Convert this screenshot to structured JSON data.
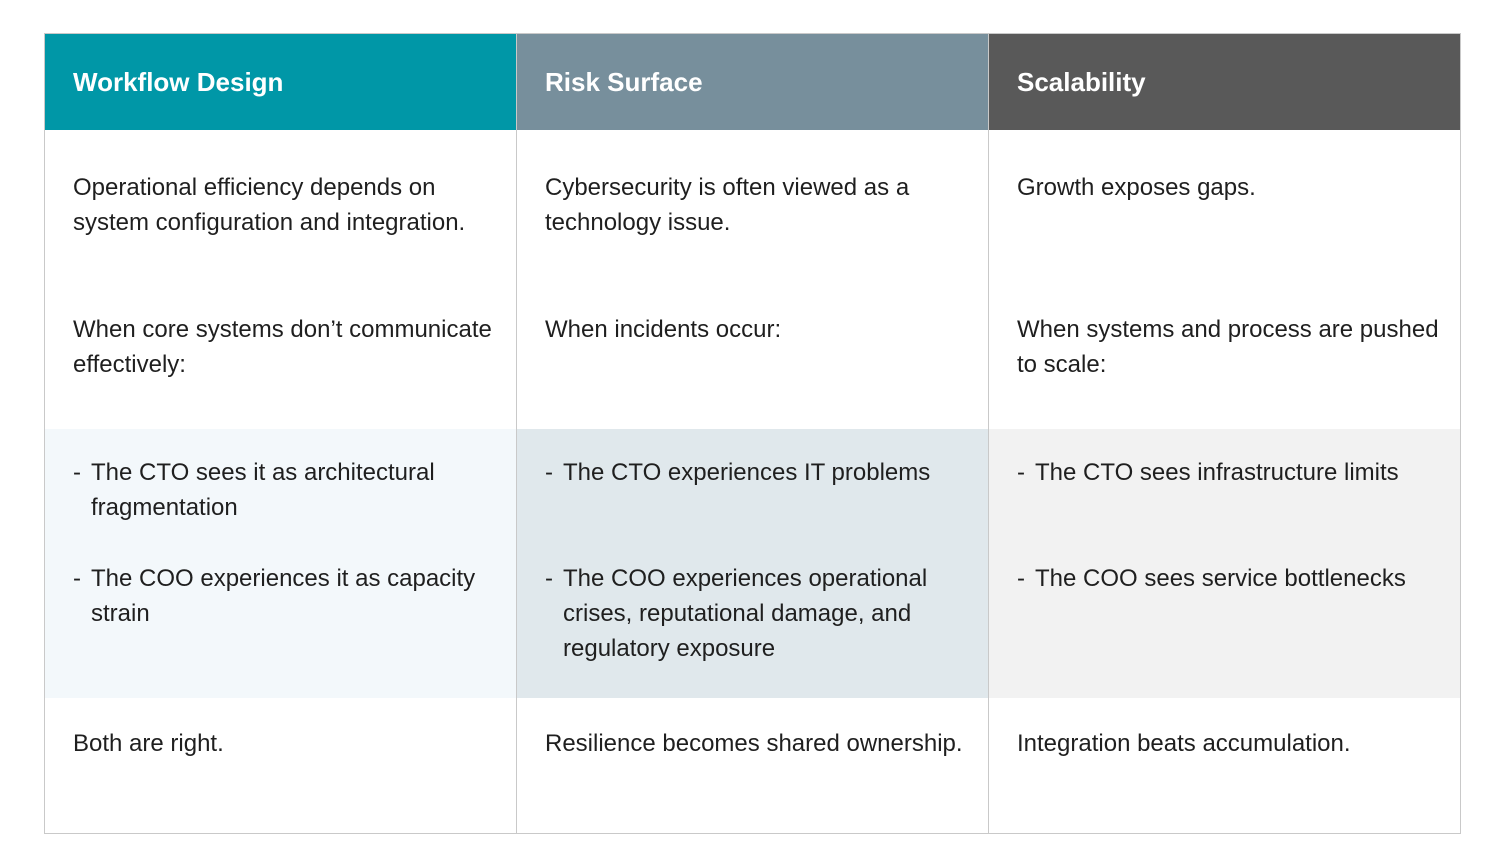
{
  "colors": {
    "col1_header": "#0097a7",
    "col2_header": "#778f9c",
    "col3_header": "#595959",
    "col1_band": "#f3f8fb",
    "col2_band": "#e0e8ec",
    "col3_band": "#f2f2f2"
  },
  "columns": [
    {
      "header": "Workflow Design",
      "intro": "Operational efficiency depends on system configuration and integration.",
      "trigger": "When core systems don’t communicate effectively:",
      "bullets": [
        {
          "dash": "-",
          "text": "The CTO sees it as architectural fragmentation"
        },
        {
          "dash": "-",
          "text": "The COO experiences it as capacity strain"
        }
      ],
      "conclusion": "Both are right."
    },
    {
      "header": "Risk Surface",
      "intro": "Cybersecurity is often viewed as a technology issue.",
      "trigger": "When incidents occur:",
      "bullets": [
        {
          "dash": "-",
          "text": "The CTO experiences IT problems"
        },
        {
          "dash": "-",
          "text": "The COO experiences operational crises, reputational damage, and regulatory exposure"
        }
      ],
      "conclusion": "Resilience becomes shared ownership."
    },
    {
      "header": "Scalability",
      "intro": "Growth exposes gaps.",
      "trigger": "When systems and process are pushed to scale:",
      "bullets": [
        {
          "dash": "-",
          "text": "The CTO sees infrastructure limits"
        },
        {
          "dash": "-",
          "text": "The COO sees service bottlenecks"
        }
      ],
      "conclusion": "Integration beats accumulation."
    }
  ]
}
